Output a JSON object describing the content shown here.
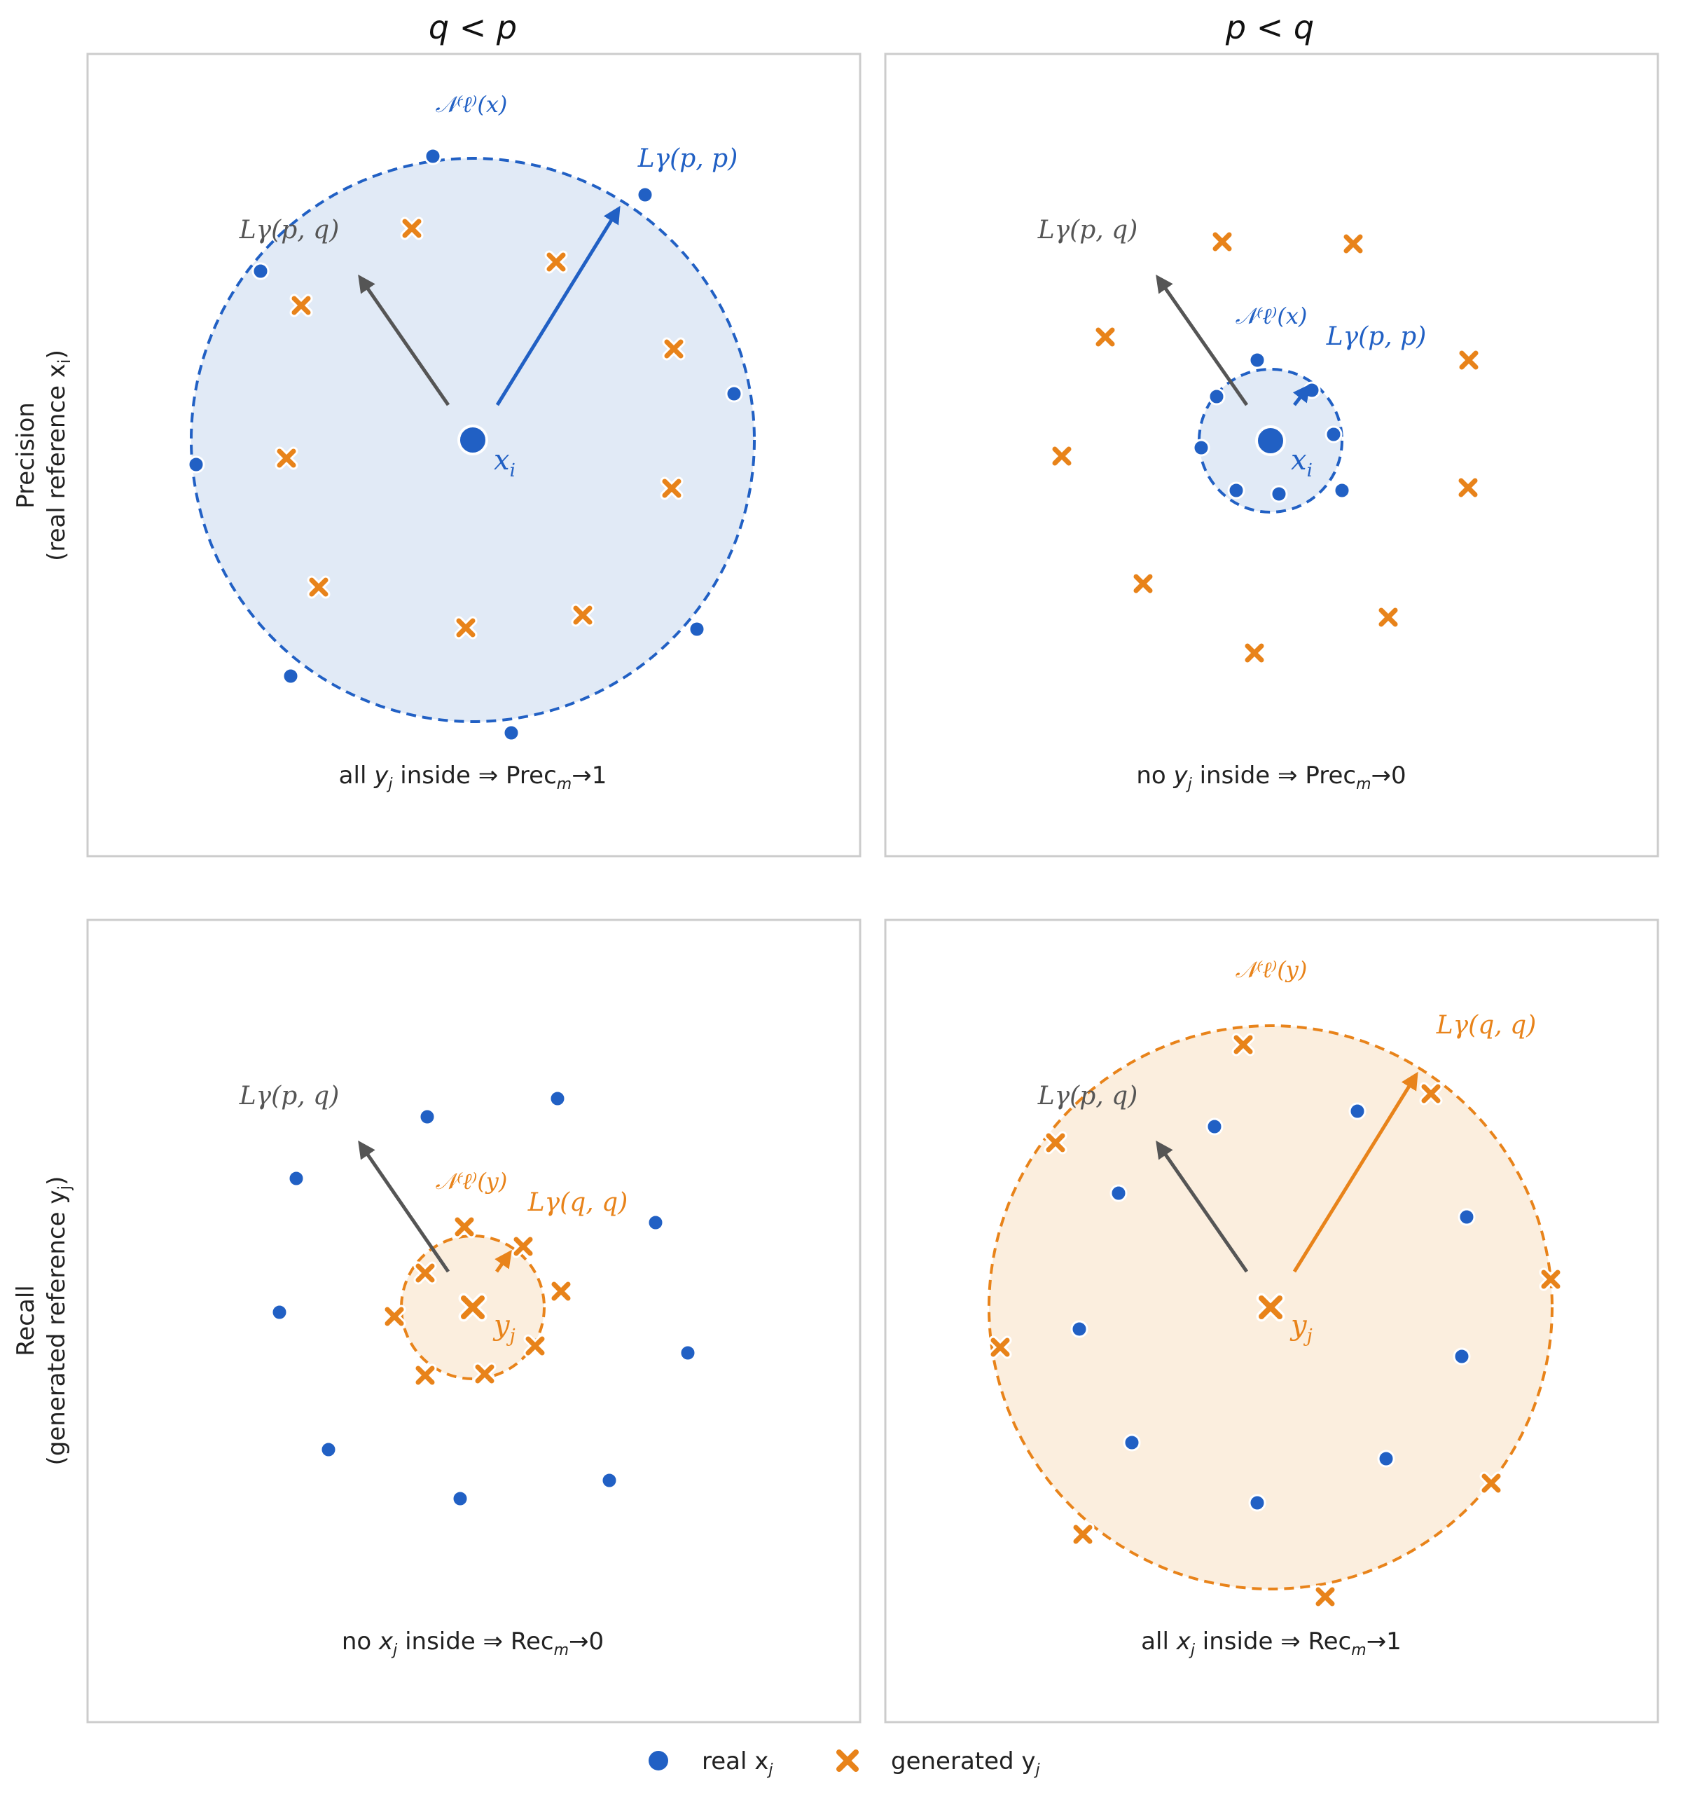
{
  "colors": {
    "blue": "#2160c4",
    "orange": "#e8831a",
    "gray": "#555555",
    "blue_fill": "#e1eaf6",
    "orange_fill": "#fbeede",
    "frame": "#cccccc"
  },
  "columns": [
    "q < p",
    "p < q"
  ],
  "rows": [
    {
      "line1": "Precision",
      "line2": "(real reference x",
      "sub": "i",
      "tail": ")"
    },
    {
      "line1": "Recall",
      "line2": "(generated reference y",
      "sub": "j",
      "tail": ")"
    }
  ],
  "panels": [
    {
      "center_label": "x",
      "center_sub": "i",
      "neigh": "𝒩⁽ℓ⁾(x)",
      "radius_label": "Lγ(p, p)",
      "gray_label": "Lγ(p, q)",
      "caption": {
        "a": "all ",
        "v": "y",
        "vs": "j",
        "b": " inside ⇒ Prec",
        "ms": "m",
        "c": "→1"
      }
    },
    {
      "center_label": "x",
      "center_sub": "i",
      "neigh": "𝒩⁽ℓ⁾(x)",
      "radius_label": "Lγ(p, p)",
      "gray_label": "Lγ(p, q)",
      "caption": {
        "a": "no ",
        "v": "y",
        "vs": "j",
        "b": " inside ⇒ Prec",
        "ms": "m",
        "c": "→0"
      }
    },
    {
      "center_label": "y",
      "center_sub": "j",
      "neigh": "𝒩⁽ℓ⁾(y)",
      "radius_label": "Lγ(q, q)",
      "gray_label": "Lγ(p, q)",
      "caption": {
        "a": "no ",
        "v": "x",
        "vs": "j",
        "b": " inside ⇒ Rec",
        "ms": "m",
        "c": "→0"
      }
    },
    {
      "center_label": "y",
      "center_sub": "j",
      "neigh": "𝒩⁽ℓ⁾(y)",
      "radius_label": "Lγ(q, q)",
      "gray_label": "Lγ(p, q)",
      "caption": {
        "a": "all ",
        "v": "x",
        "vs": "j",
        "b": " inside ⇒ Rec",
        "ms": "m",
        "c": "→1"
      }
    }
  ],
  "legend": [
    {
      "text": "real x",
      "sub": "j",
      "marker": "dot",
      "color": "#2160c4"
    },
    {
      "text": "generated y",
      "sub": "j",
      "marker": "cross",
      "color": "#e8831a"
    }
  ]
}
